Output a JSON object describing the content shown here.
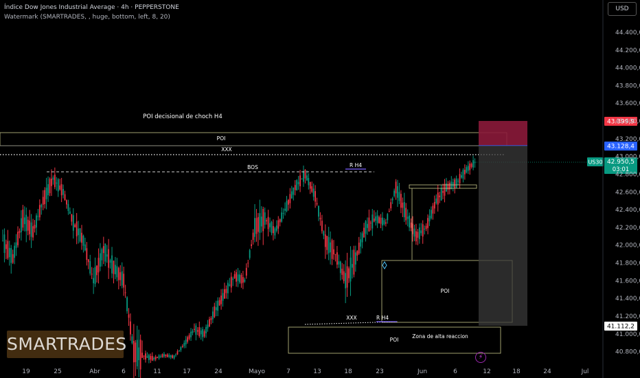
{
  "header": {
    "title": "Índice Dow Jones Industrial Average · 4h · PEPPERSTONE",
    "watermark_settings": "Watermark (SMARTRADES, , huge, bottom, left, 8, 20)"
  },
  "currency_button": "USD",
  "watermark": "SMARTRADES",
  "chart_data": {
    "type": "candlestick",
    "symbol": "US30",
    "timeframe": "4h",
    "price_axis": {
      "min": 40700,
      "max": 44500,
      "ticks": [
        "44.400,0",
        "44.200,0",
        "44.000,0",
        "43.800,0",
        "43.600,0",
        "43.400,0",
        "43.200,0",
        "43.000,0",
        "42.800,0",
        "42.600,0",
        "42.400,0",
        "42.200,0",
        "42.000,0",
        "41.800,0",
        "41.600,0",
        "41.400,0",
        "41.200,0",
        "41.000,0",
        "40.800,0"
      ]
    },
    "x_axis_ticks": [
      "19",
      "25",
      "Abr",
      "6",
      "11",
      "17",
      "24",
      "Mayo",
      "7",
      "13",
      "18",
      "23",
      "Jun",
      "6",
      "12",
      "18",
      "24",
      "Jul"
    ],
    "price_labels": [
      {
        "text": "43.399,9",
        "color": "#f23645"
      },
      {
        "text": "43.128,4",
        "color": "#2962ff"
      },
      {
        "text": "42.950,5",
        "sub": "03:01",
        "color": "#089981"
      },
      {
        "text": "41.112,2",
        "color": "#ffffff"
      }
    ],
    "symbol_tag": "US30",
    "annotations": [
      {
        "text": "POI decisional de choch H4"
      },
      {
        "text": "POI"
      },
      {
        "text": "XXX"
      },
      {
        "text": "BOS"
      },
      {
        "text": "R H4"
      },
      {
        "text": "POI"
      },
      {
        "text": "XXX"
      },
      {
        "text": "R H4"
      },
      {
        "text": "Zona de alta reaccion"
      },
      {
        "text": "POI"
      }
    ],
    "candles": [
      [
        "2025-03-17",
        41900,
        42300,
        41700,
        42050
      ],
      [
        "2025-03-18",
        42050,
        42200,
        41750,
        41850
      ],
      [
        "2025-03-19",
        41850,
        42400,
        41800,
        42300
      ],
      [
        "2025-03-20",
        42300,
        42450,
        42050,
        42150
      ],
      [
        "2025-03-21",
        42150,
        42600,
        42050,
        42500
      ],
      [
        "2025-03-24",
        42500,
        42850,
        42450,
        42750
      ],
      [
        "2025-03-25",
        42750,
        42800,
        42550,
        42600
      ],
      [
        "2025-03-26",
        42600,
        42650,
        42150,
        42250
      ],
      [
        "2025-03-27",
        42250,
        42350,
        41950,
        42050
      ],
      [
        "2025-03-28",
        42050,
        42100,
        41500,
        41600
      ],
      [
        "2025-03-31",
        41600,
        42000,
        41400,
        41950
      ],
      [
        "2025-04-01",
        41950,
        42100,
        41600,
        41750
      ],
      [
        "2025-04-02",
        41750,
        41950,
        41500,
        41600
      ],
      [
        "2025-04-03",
        41600,
        41700,
        40700,
        40800
      ],
      [
        "2025-04-04",
        40800,
        40900,
        40700,
        40750
      ],
      [
        "2025-04-09",
        40750,
        40800,
        40700,
        40720
      ],
      [
        "2025-04-14",
        40720,
        40800,
        40700,
        40760
      ],
      [
        "2025-04-24",
        40760,
        40800,
        40700,
        40740
      ],
      [
        "2025-05-01",
        40740,
        40900,
        40700,
        40880
      ],
      [
        "2025-05-02",
        40880,
        41100,
        40800,
        41050
      ],
      [
        "2025-05-05",
        41050,
        41150,
        40900,
        41000
      ],
      [
        "2025-05-06",
        41000,
        41300,
        40950,
        41250
      ],
      [
        "2025-05-07",
        41250,
        41500,
        41150,
        41450
      ],
      [
        "2025-05-08",
        41450,
        41700,
        41350,
        41650
      ],
      [
        "2025-05-09",
        41650,
        41750,
        41500,
        41600
      ],
      [
        "2025-05-12",
        41600,
        42300,
        41550,
        42200
      ],
      [
        "2025-05-13",
        42200,
        42450,
        42050,
        42300
      ],
      [
        "2025-05-14",
        42300,
        42350,
        42050,
        42150
      ],
      [
        "2025-05-15",
        42150,
        42450,
        42100,
        42400
      ],
      [
        "2025-05-16",
        42400,
        42700,
        42350,
        42650
      ],
      [
        "2025-05-19",
        42650,
        42850,
        42550,
        42800
      ],
      [
        "2025-05-20",
        42800,
        42850,
        42500,
        42550
      ],
      [
        "2025-05-21",
        42550,
        42600,
        41950,
        42050
      ],
      [
        "2025-05-22",
        42050,
        42100,
        41700,
        41900
      ],
      [
        "2025-05-23",
        41900,
        41950,
        41150,
        41600
      ],
      [
        "2025-05-26",
        41600,
        41900,
        41500,
        41850
      ],
      [
        "2025-05-27",
        41850,
        42250,
        41800,
        42200
      ],
      [
        "2025-05-28",
        42200,
        42400,
        42100,
        42300
      ],
      [
        "2025-05-29",
        42300,
        42350,
        42150,
        42250
      ],
      [
        "2025-05-30",
        42250,
        42700,
        42200,
        42650
      ],
      [
        "2025-06-02",
        42650,
        42700,
        42300,
        42350
      ],
      [
        "2025-06-03",
        42350,
        42400,
        42000,
        42100
      ],
      [
        "2025-06-04",
        42100,
        42300,
        41950,
        42200
      ],
      [
        "2025-06-05",
        42200,
        42550,
        42150,
        42500
      ],
      [
        "2025-06-06",
        42500,
        42700,
        42400,
        42650
      ],
      [
        "2025-06-09",
        42650,
        42850,
        42550,
        42700
      ],
      [
        "2025-06-10",
        42700,
        42900,
        42650,
        42850
      ],
      [
        "2025-06-11",
        42850,
        42950,
        42750,
        42950
      ]
    ]
  }
}
